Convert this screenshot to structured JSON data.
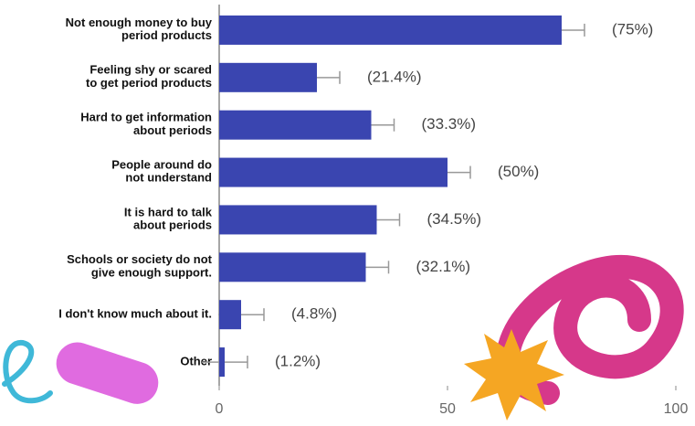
{
  "chart_data": {
    "type": "bar",
    "orientation": "horizontal",
    "categories": [
      "Not enough money to buy\nperiod products",
      "Feeling shy or scared\nto get period products",
      "Hard to get information\nabout periods",
      "People around do\nnot understand",
      "It is hard to talk\nabout periods",
      "Schools or society do not\ngive enough support.",
      "I don't know much about it.",
      "Other"
    ],
    "values": [
      75,
      21.4,
      33.3,
      50,
      34.5,
      32.1,
      4.8,
      1.2
    ],
    "value_labels": [
      "(75%)",
      "(21.4%)",
      "(33.3%)",
      "(50%)",
      "(34.5%)",
      "(32.1%)",
      "(4.8%)",
      "(1.2%)"
    ],
    "errors": [
      5,
      5,
      5,
      5,
      5,
      5,
      5,
      5
    ],
    "color": "#3a45b0",
    "xlim": [
      0,
      100
    ],
    "xticks": [
      0,
      50,
      100
    ],
    "grid": false
  }
}
